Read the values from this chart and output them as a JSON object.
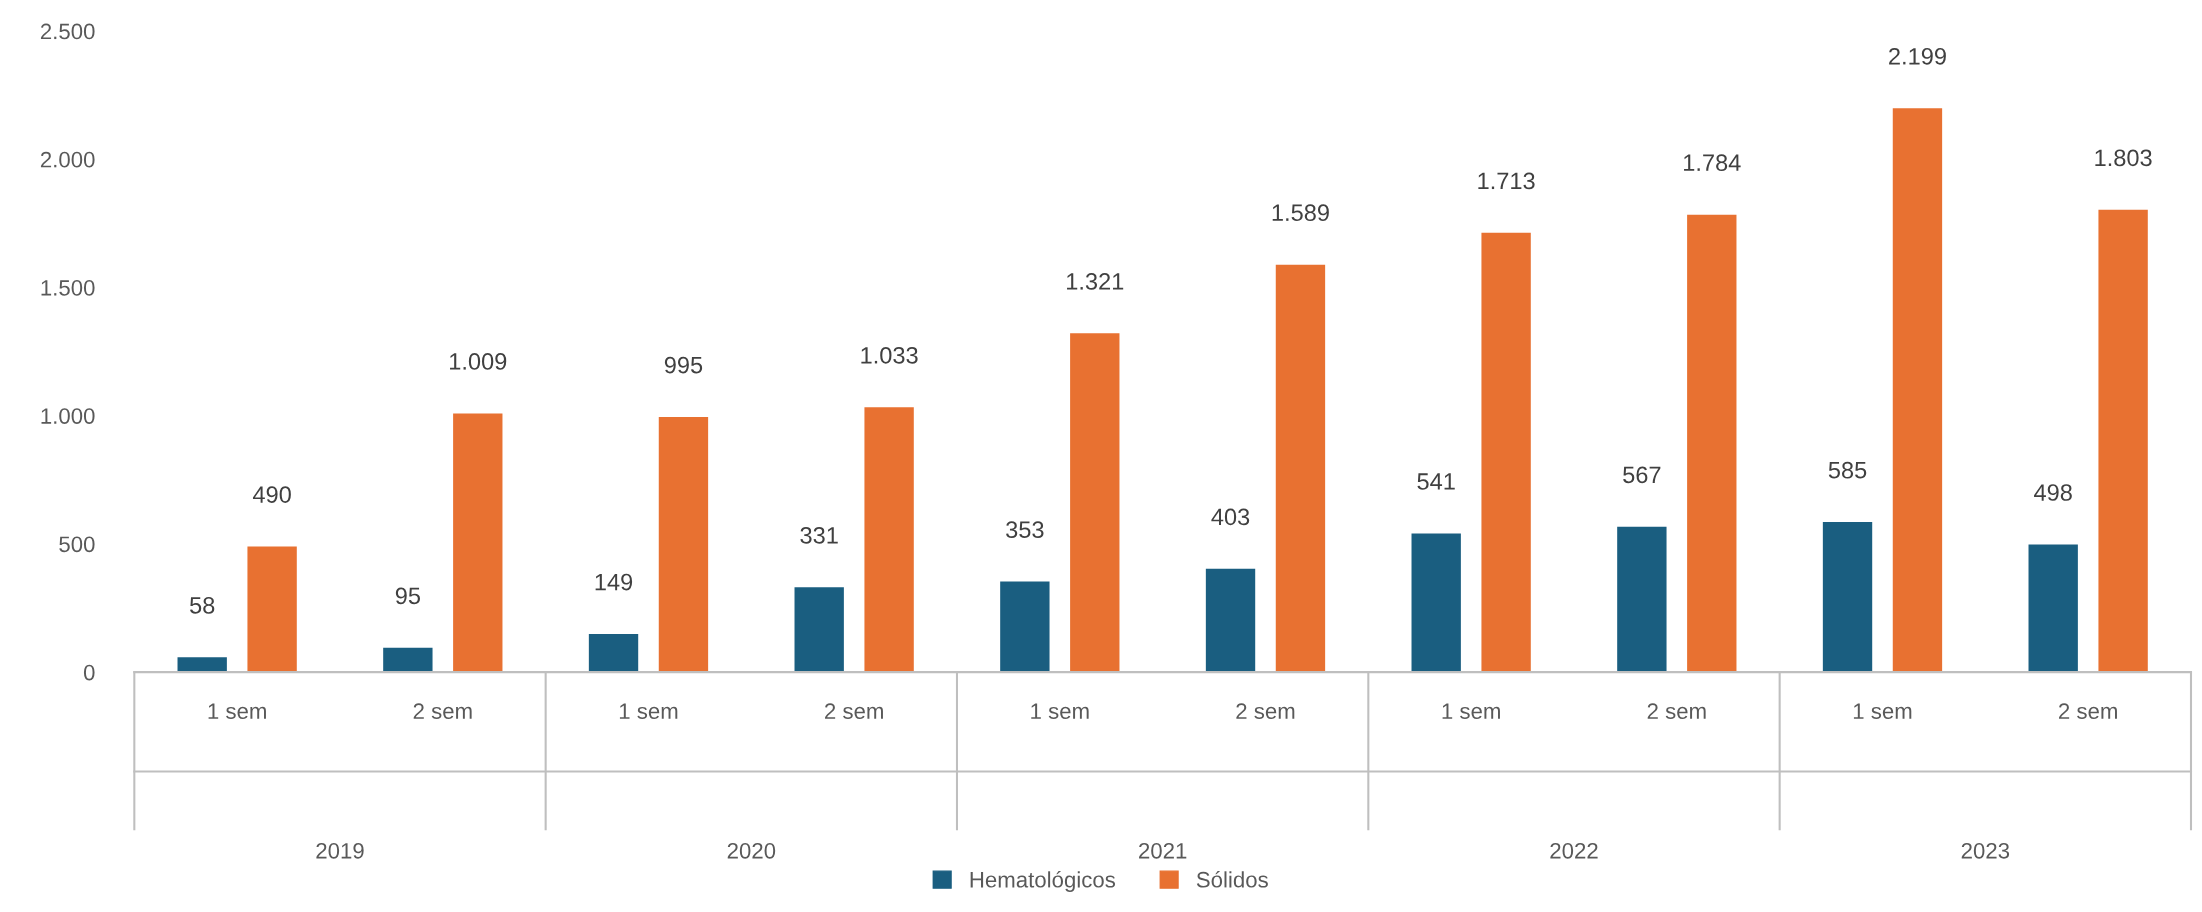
{
  "chart_data": {
    "type": "bar",
    "categories": [
      "1 sem",
      "2 sem",
      "1 sem",
      "2 sem",
      "1 sem",
      "2 sem",
      "1 sem",
      "2 sem",
      "1 sem",
      "2 sem"
    ],
    "series": [
      {
        "name": "Hematológicos",
        "color": "#1a5e80",
        "values": [
          58,
          95,
          149,
          331,
          353,
          403,
          541,
          567,
          585,
          498
        ],
        "value_labels": [
          "58",
          "95",
          "149",
          "331",
          "353",
          "403",
          "541",
          "567",
          "585",
          "498"
        ]
      },
      {
        "name": "Sólidos",
        "color": "#e87131",
        "values": [
          490,
          1009,
          995,
          1033,
          1321,
          1589,
          1713,
          1784,
          2199,
          1803
        ],
        "value_labels": [
          "490",
          "1.009",
          "995",
          "1.033",
          "1.321",
          "1.589",
          "1.713",
          "1.784",
          "2.199",
          "1.803"
        ]
      }
    ],
    "annotations": [
      "2019",
      "2020",
      "2021",
      "2022",
      "2023"
    ],
    "ylim": [
      0,
      2500
    ],
    "yticks": [
      0,
      500,
      {
        "value": 1000,
        "label": "1.000"
      },
      {
        "value": 1500,
        "label": "1.500"
      },
      {
        "value": 2000,
        "label": "2.000"
      },
      {
        "value": 2500,
        "label": "2.500"
      }
    ],
    "grid": false,
    "legend": "bottom"
  }
}
